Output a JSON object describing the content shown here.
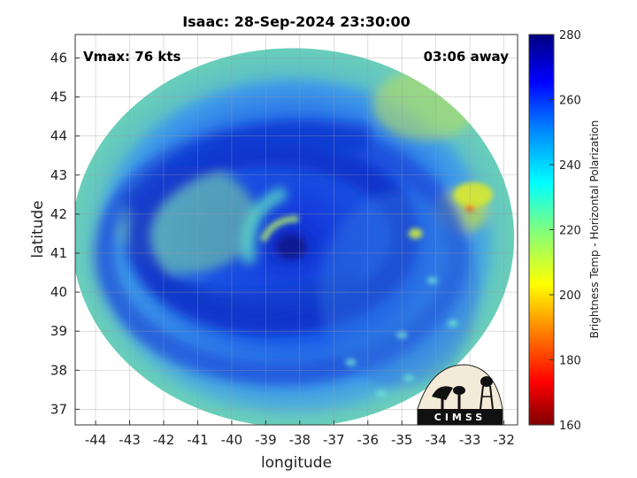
{
  "chart_data": {
    "type": "heatmap",
    "title": "Isaac: 28-Sep-2024 23:30:00",
    "xlabel": "longitude",
    "ylabel": "latitude",
    "xlim": [
      -44.6,
      -31.6
    ],
    "ylim": [
      36.6,
      46.6
    ],
    "x_ticks": [
      -44,
      -43,
      -42,
      -41,
      -40,
      -39,
      -38,
      -37,
      -36,
      -35,
      -34,
      -33,
      -32
    ],
    "y_ticks": [
      37,
      38,
      39,
      40,
      41,
      42,
      43,
      44,
      45,
      46
    ],
    "grid": true,
    "annotations": {
      "vmax": "Vmax: 76 kts",
      "time_away": "03:06 away"
    },
    "colorbar": {
      "label": "Brightness Temp - Horizontal Polarization",
      "range": [
        160,
        280
      ],
      "ticks": [
        160,
        180,
        200,
        220,
        240,
        260,
        280
      ],
      "colormap": [
        "#7f0000",
        "#ff0000",
        "#ffff00",
        "#00ffff",
        "#0000ff",
        "#00007f"
      ]
    },
    "storm_center": {
      "lon": -38.3,
      "lat": 41.2
    },
    "footprint_center": {
      "lon": -38.2,
      "lat": 41.4
    },
    "logo_text": "CIMSS"
  }
}
